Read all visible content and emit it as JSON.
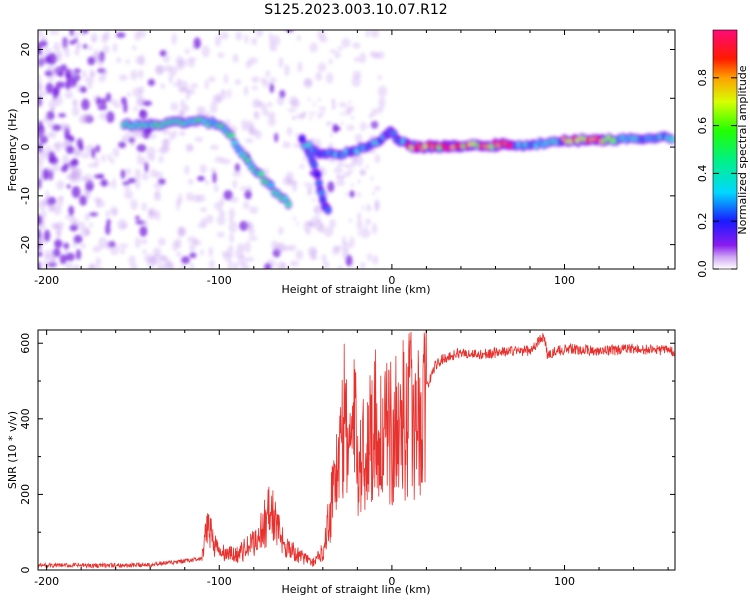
{
  "title": "S125.2023.003.10.07.R12",
  "colors": {
    "snr_line": "#e8302d",
    "low_density": "#c9a4f2",
    "mid_density": "#7a1fe0"
  },
  "chart_data": [
    {
      "type": "heatmap",
      "name": "spectrogram",
      "xlabel": "Height of straight line (km)",
      "ylabel": "Frequency (Hz)",
      "xlim": [
        -205,
        164
      ],
      "ylim": [
        -25,
        24
      ],
      "xticks": [
        -200,
        -100,
        0,
        100
      ],
      "xtick_labels": [
        "-200",
        "-100",
        "0",
        "100"
      ],
      "yticks": [
        -20,
        -10,
        0,
        10,
        20
      ],
      "ytick_labels": [
        "-20",
        "-10",
        "0",
        "10",
        "20"
      ],
      "colorbar": {
        "label": "Normalized spectral amplitude",
        "range": [
          0,
          1
        ],
        "ticks": [
          0.0,
          0.2,
          0.4,
          0.6,
          0.8
        ],
        "tick_labels": [
          "0.0",
          "0.2",
          "0.4",
          "0.6",
          "0.8"
        ],
        "colormap": "gist_rainbow_r"
      },
      "ridges": [
        {
          "points": [
            [
              -155,
              4.5
            ],
            [
              -140,
              4.5
            ],
            [
              -125,
              5
            ],
            [
              -112,
              5.5
            ],
            [
              -100,
              4.5
            ],
            [
              -93,
              2
            ],
            [
              -85,
              -2
            ],
            [
              -78,
              -5
            ],
            [
              -68,
              -9
            ],
            [
              -58,
              -12
            ]
          ],
          "amplitude": 0.5
        },
        {
          "points": [
            [
              -52,
              1.5
            ],
            [
              -47,
              -2
            ],
            [
              -43,
              -6
            ],
            [
              -40,
              -11
            ],
            [
              -36,
              -14
            ]
          ],
          "amplitude": 0.3
        },
        {
          "points": [
            [
              -50,
              0.5
            ],
            [
              -40,
              -1.5
            ],
            [
              -30,
              -1.5
            ],
            [
              -20,
              -0.5
            ],
            [
              -10,
              0.5
            ],
            [
              -3,
              2.5
            ],
            [
              0,
              3
            ],
            [
              5,
              1
            ],
            [
              15,
              0
            ],
            [
              40,
              0.2
            ],
            [
              80,
              0.5
            ],
            [
              120,
              1.5
            ],
            [
              164,
              2
            ]
          ],
          "amplitude": 0.4
        },
        {
          "points": [
            [
              10,
              0
            ],
            [
              40,
              0.3
            ],
            [
              60,
              0.5
            ],
            [
              70,
              0.5
            ]
          ],
          "amplitude": 0.92
        },
        {
          "points": [
            [
              100,
              1.5
            ],
            [
              130,
              1.5
            ]
          ],
          "amplitude": 0.9
        }
      ]
    },
    {
      "type": "line",
      "name": "snr",
      "xlabel": "Height of straight line (km)",
      "ylabel": "SNR (10 * v/v)",
      "xlim": [
        -205,
        164
      ],
      "ylim": [
        0,
        635
      ],
      "xticks": [
        -200,
        -100,
        0,
        100
      ],
      "xtick_labels": [
        "-200",
        "-100",
        "0",
        "100"
      ],
      "yticks": [
        0,
        200,
        400,
        600
      ],
      "ytick_labels": [
        "0",
        "200",
        "400",
        "600"
      ],
      "series": [
        {
          "x": [
            -205,
            -180,
            -150,
            -125,
            -110,
            -106,
            -103,
            -100,
            -90,
            -80,
            -75,
            -70,
            -65,
            -60,
            -55,
            -50,
            -45,
            -40,
            -36,
            -33,
            -30,
            -27,
            -25,
            -22,
            -20,
            -15,
            -10,
            -5,
            0,
            5,
            10,
            15,
            20,
            25,
            30,
            40,
            50,
            60,
            70,
            80,
            88,
            90,
            100,
            120,
            140,
            164
          ],
          "y": [
            12,
            12,
            12,
            20,
            30,
            130,
            70,
            45,
            40,
            70,
            110,
            160,
            90,
            60,
            40,
            30,
            20,
            50,
            150,
            260,
            300,
            420,
            330,
            380,
            300,
            310,
            400,
            350,
            360,
            390,
            420,
            380,
            480,
            540,
            560,
            575,
            570,
            575,
            580,
            580,
            620,
            570,
            585,
            580,
            585,
            580
          ]
        }
      ]
    }
  ]
}
